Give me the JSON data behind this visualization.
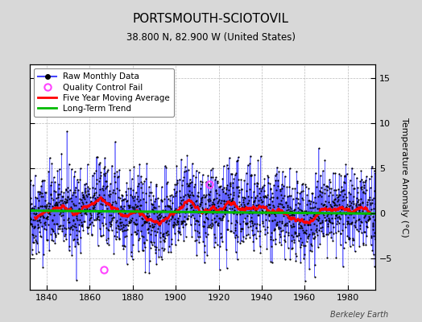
{
  "title": "PORTSMOUTH-SCIOTOVIL",
  "subtitle": "38.800 N, 82.900 W (United States)",
  "ylabel_right": "Temperature Anomaly (°C)",
  "credit": "Berkeley Earth",
  "start_year": 1832,
  "end_year": 1993,
  "ylim": [
    -8.5,
    16.5
  ],
  "yticks": [
    -5,
    0,
    5,
    10,
    15
  ],
  "xticks": [
    1840,
    1860,
    1880,
    1900,
    1920,
    1940,
    1960,
    1980
  ],
  "xlim": [
    1832,
    1993
  ],
  "bg_color": "#d8d8d8",
  "plot_bg_color": "#ffffff",
  "line_color": "#4444ff",
  "dot_color": "#000000",
  "moving_avg_color": "#ff0000",
  "trend_color": "#00bb00",
  "qc_fail_color": "#ff44ff",
  "legend_labels": [
    "Raw Monthly Data",
    "Quality Control Fail",
    "Five Year Moving Average",
    "Long-Term Trend"
  ],
  "seed": 42,
  "qc_fail_points": [
    [
      1866.5,
      -6.3
    ],
    [
      1915.5,
      3.2
    ]
  ],
  "trend_slope": -0.002,
  "trend_intercept": 0.12,
  "noise_std": 2.3,
  "moving_avg_window": 60
}
